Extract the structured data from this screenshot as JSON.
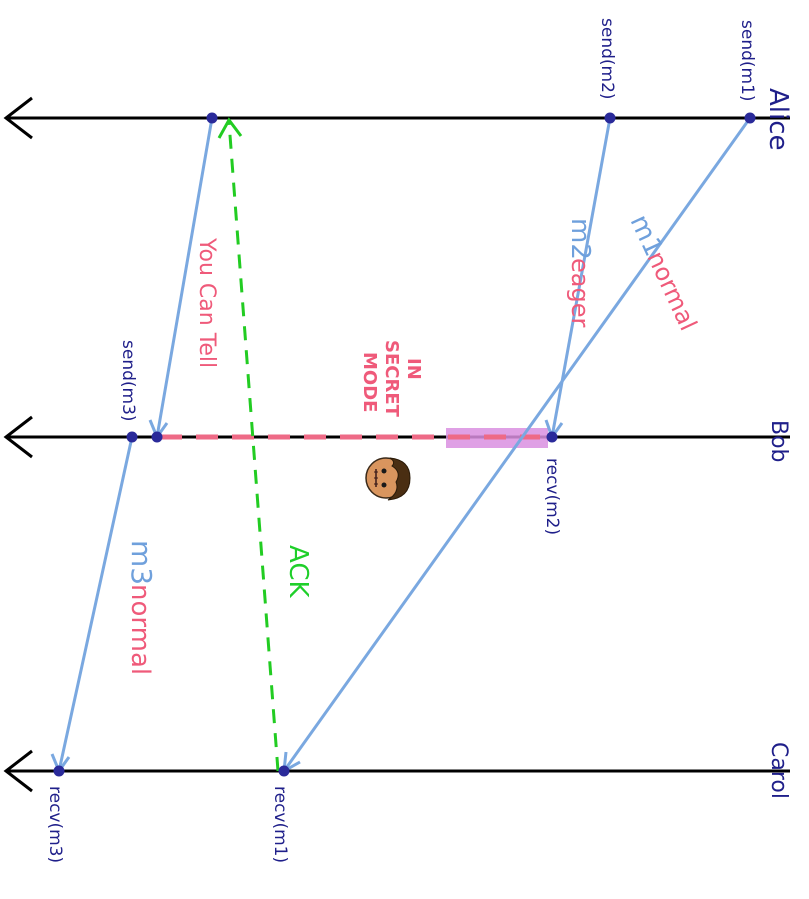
{
  "processes": {
    "alice": "Alice",
    "bob": "Bob",
    "carol": "Carol"
  },
  "events": {
    "send_m1": "send(m1)",
    "send_m2": "send(m2)",
    "send_m3": "send(m3)",
    "recv_m1": "recv(m1)",
    "recv_m2": "recv(m2)",
    "recv_m3": "recv(m3)"
  },
  "messages": {
    "m1": {
      "name": "m1",
      "mode": "normal"
    },
    "m2": {
      "name": "m2",
      "mode": "eager"
    },
    "m3": {
      "name": "m3",
      "mode": "normal"
    }
  },
  "annotations": {
    "you_can_tell": "You Can Tell",
    "secret_line1": "IN",
    "secret_line2": "SECRET",
    "secret_line3": "MODE",
    "ack": "ACK"
  },
  "colors": {
    "timeline": "#000000",
    "message": "#7aa8e0",
    "ack": "#22cc22",
    "secret_dash": "#ee6a86",
    "highlight": "#d98fe0",
    "event_dot": "#2a2a9a"
  }
}
